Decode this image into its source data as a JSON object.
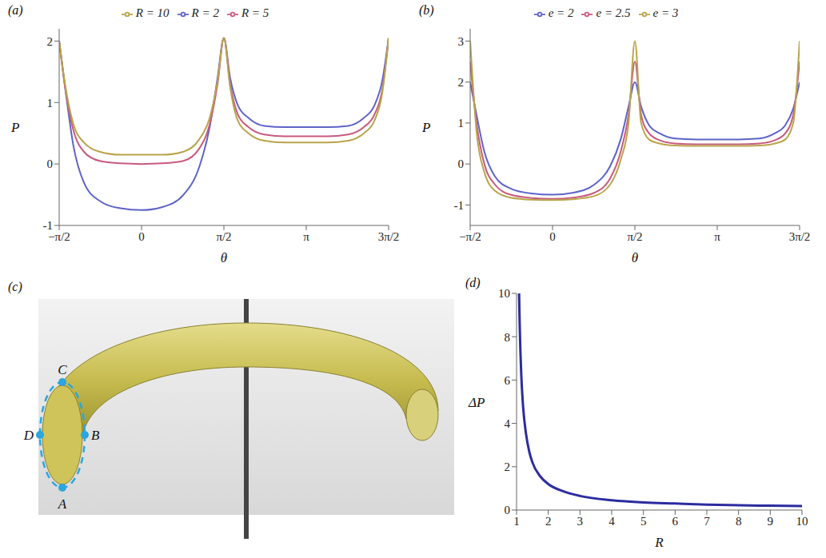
{
  "chart_data": [
    {
      "type": "line",
      "panel": "(a)",
      "x_label": "θ",
      "y_label": "P",
      "legend": "top",
      "x": [
        -1.5708,
        -1.45,
        -1.3,
        -1.1,
        -0.8,
        -0.4,
        0,
        0.4,
        0.8,
        1.1,
        1.3,
        1.45,
        1.5708,
        1.69,
        1.84,
        2.04,
        2.34,
        2.74,
        3.1416,
        3.54,
        3.94,
        4.24,
        4.44,
        4.59,
        4.7124
      ],
      "xlim": [
        -1.5708,
        4.7124
      ],
      "xticks": [
        {
          "value": -1.5708,
          "label": "−π/2"
        },
        0,
        {
          "value": 1.5708,
          "label": "π/2"
        },
        {
          "value": 3.1416,
          "label": "π"
        },
        {
          "value": 4.7124,
          "label": "3π/2"
        }
      ],
      "ylim": [
        -1,
        2.2
      ],
      "yticks": [
        -1,
        0,
        1,
        2
      ],
      "series": [
        {
          "name": "R = 2",
          "color": "#5e63c8",
          "values": [
            2,
            1.2,
            0.3,
            -0.3,
            -0.6,
            -0.72,
            -0.75,
            -0.7,
            -0.5,
            -0.05,
            0.6,
            1.4,
            2.05,
            1.4,
            0.95,
            0.75,
            0.62,
            0.6,
            0.6,
            0.6,
            0.62,
            0.75,
            0.95,
            1.35,
            2.05
          ]
        },
        {
          "name": "R = 5",
          "color": "#c85a7e",
          "values": [
            2,
            1.2,
            0.55,
            0.2,
            0.05,
            0.01,
            0,
            0.01,
            0.05,
            0.25,
            0.65,
            1.3,
            2.05,
            1.3,
            0.8,
            0.6,
            0.48,
            0.45,
            0.45,
            0.45,
            0.48,
            0.6,
            0.8,
            1.2,
            2.05
          ]
        },
        {
          "name": "R = 10",
          "color": "#b8a44a",
          "values": [
            2,
            1.25,
            0.65,
            0.35,
            0.2,
            0.15,
            0.15,
            0.15,
            0.2,
            0.4,
            0.75,
            1.35,
            2.05,
            1.25,
            0.7,
            0.5,
            0.38,
            0.35,
            0.35,
            0.35,
            0.38,
            0.5,
            0.7,
            1.15,
            2.05
          ]
        }
      ]
    },
    {
      "type": "line",
      "panel": "(b)",
      "x_label": "θ",
      "y_label": "P",
      "legend": "top",
      "x": [
        -1.5708,
        -1.45,
        -1.3,
        -1.1,
        -0.8,
        -0.4,
        0,
        0.4,
        0.8,
        1.1,
        1.3,
        1.45,
        1.5708,
        1.69,
        1.84,
        2.04,
        2.34,
        2.74,
        3.1416,
        3.54,
        3.94,
        4.24,
        4.44,
        4.59,
        4.7124
      ],
      "xlim": [
        -1.5708,
        4.7124
      ],
      "xticks": [
        {
          "value": -1.5708,
          "label": "−π/2"
        },
        0,
        {
          "value": 1.5708,
          "label": "π/2"
        },
        {
          "value": 3.1416,
          "label": "π"
        },
        {
          "value": 4.7124,
          "label": "3π/2"
        }
      ],
      "ylim": [
        -1.5,
        3.3
      ],
      "yticks": [
        -1,
        0,
        1,
        2,
        3
      ],
      "series": [
        {
          "name": "e = 2",
          "color": "#5e63c8",
          "values": [
            2,
            1.2,
            0.3,
            -0.3,
            -0.6,
            -0.72,
            -0.75,
            -0.7,
            -0.5,
            -0.05,
            0.6,
            1.4,
            2,
            1.4,
            0.95,
            0.75,
            0.62,
            0.6,
            0.6,
            0.6,
            0.62,
            0.75,
            0.95,
            1.35,
            2
          ]
        },
        {
          "name": "e = 2.5",
          "color": "#c85a7e",
          "values": [
            2.5,
            1,
            0,
            -0.5,
            -0.75,
            -0.83,
            -0.85,
            -0.82,
            -0.7,
            -0.35,
            0.3,
            1.2,
            2.5,
            1.2,
            0.75,
            0.58,
            0.5,
            0.48,
            0.48,
            0.48,
            0.5,
            0.58,
            0.75,
            1.2,
            2.5
          ]
        },
        {
          "name": "e = 3",
          "color": "#b8a44a",
          "values": [
            3,
            0.8,
            -0.2,
            -0.65,
            -0.82,
            -0.87,
            -0.88,
            -0.86,
            -0.78,
            -0.5,
            0.1,
            1,
            3,
            1,
            0.6,
            0.5,
            0.45,
            0.44,
            0.44,
            0.44,
            0.45,
            0.5,
            0.6,
            1,
            3
          ]
        }
      ]
    },
    {
      "type": "diagram",
      "panel": "(c)",
      "points": [
        "A",
        "B",
        "C",
        "D"
      ]
    },
    {
      "type": "line",
      "panel": "(d)",
      "x_label": "R",
      "y_label": "ΔP",
      "color": "#2c2ca0",
      "x": [
        1.08,
        1.1,
        1.15,
        1.2,
        1.3,
        1.4,
        1.5,
        1.75,
        2,
        2.5,
        3,
        4,
        5,
        6,
        7,
        8,
        9,
        10
      ],
      "values": [
        10,
        8.5,
        6.2,
        4.9,
        3.5,
        2.7,
        2.2,
        1.55,
        1.2,
        0.85,
        0.65,
        0.45,
        0.35,
        0.3,
        0.25,
        0.22,
        0.2,
        0.18
      ],
      "xlim": [
        1,
        10
      ],
      "xticks": [
        1,
        2,
        3,
        4,
        5,
        6,
        7,
        8,
        9,
        10
      ],
      "ylim": [
        0,
        10
      ],
      "yticks": [
        0,
        2,
        4,
        6,
        8,
        10
      ]
    }
  ]
}
